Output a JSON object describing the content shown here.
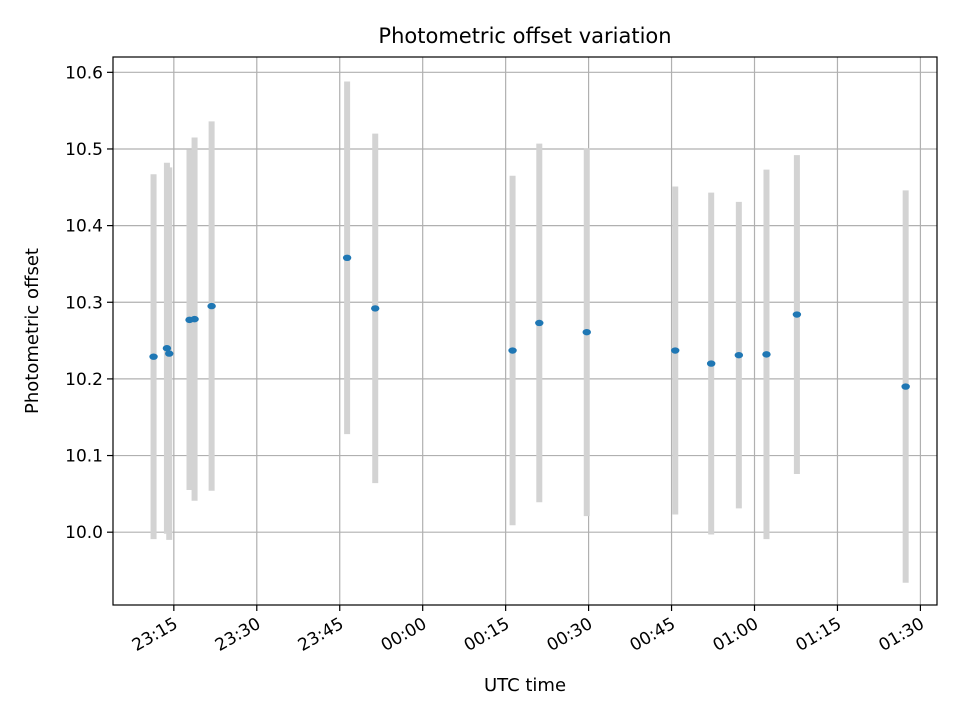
{
  "chart_data": {
    "type": "scatter",
    "title": "Photometric offset variation",
    "xlabel": "UTC time",
    "ylabel": "Photometric offset",
    "grid": true,
    "xlim": [
      "23:04",
      "01:33"
    ],
    "ylim": [
      9.905,
      10.62
    ],
    "x_ticks": [
      "23:15",
      "23:30",
      "23:45",
      "00:00",
      "00:15",
      "00:30",
      "00:45",
      "01:00",
      "01:15",
      "01:30"
    ],
    "y_ticks": [
      "10.0",
      "10.1",
      "10.2",
      "10.3",
      "10.4",
      "10.5",
      "10.6"
    ],
    "colors": {
      "point": "#1f77b4",
      "errorbar": "#d3d3d3",
      "grid": "#b0b0b0"
    },
    "series": [
      {
        "points": [
          {
            "x": "23:11:20",
            "y": 10.229,
            "yerr": 0.238
          },
          {
            "x": "23:13:45",
            "y": 10.24,
            "yerr": 0.242
          },
          {
            "x": "23:14:10",
            "y": 10.233,
            "yerr": 0.243
          },
          {
            "x": "23:17:50",
            "y": 10.277,
            "yerr": 0.222
          },
          {
            "x": "23:18:45",
            "y": 10.278,
            "yerr": 0.237
          },
          {
            "x": "23:21:50",
            "y": 10.295,
            "yerr": 0.241
          },
          {
            "x": "23:46:20",
            "y": 10.358,
            "yerr": 0.23
          },
          {
            "x": "23:51:25",
            "y": 10.292,
            "yerr": 0.228
          },
          {
            "x": "00:16:15",
            "y": 10.237,
            "yerr": 0.228
          },
          {
            "x": "00:21:05",
            "y": 10.273,
            "yerr": 0.234
          },
          {
            "x": "00:29:40",
            "y": 10.261,
            "yerr": 0.24
          },
          {
            "x": "00:45:40",
            "y": 10.237,
            "yerr": 0.214
          },
          {
            "x": "00:52:10",
            "y": 10.22,
            "yerr": 0.223
          },
          {
            "x": "00:57:10",
            "y": 10.231,
            "yerr": 0.2
          },
          {
            "x": "01:02:10",
            "y": 10.232,
            "yerr": 0.241
          },
          {
            "x": "01:07:40",
            "y": 10.284,
            "yerr": 0.208
          },
          {
            "x": "01:27:20",
            "y": 10.19,
            "yerr": 0.256
          }
        ]
      }
    ]
  }
}
